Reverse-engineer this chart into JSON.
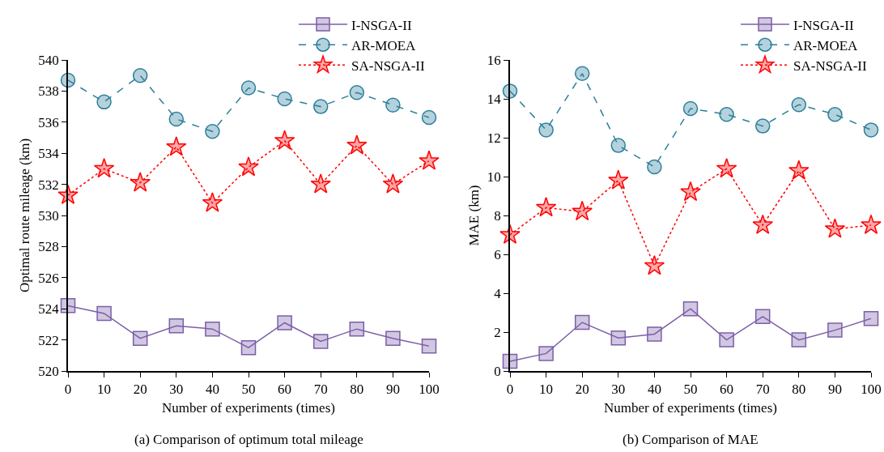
{
  "chart_data": [
    {
      "type": "line",
      "xlabel": "Number of experiments (times)",
      "ylabel": "Optimal route mileage (km)",
      "annotations": [
        "(a) Comparison of optimum total mileage"
      ],
      "x": [
        0,
        10,
        20,
        30,
        40,
        50,
        60,
        70,
        80,
        90,
        100
      ],
      "xlim": [
        0,
        100
      ],
      "xticks": [
        0,
        10,
        20,
        30,
        40,
        50,
        60,
        70,
        80,
        90,
        100
      ],
      "ylim": [
        520,
        540
      ],
      "yticks": [
        520,
        522,
        524,
        526,
        528,
        530,
        532,
        534,
        536,
        538,
        540
      ],
      "grid": false,
      "legend": "top right",
      "series": [
        {
          "name": "I-NSGA-II",
          "color": "#7b5fa8",
          "marker": "square",
          "line_style": "solid",
          "values": [
            524.2,
            523.7,
            522.1,
            522.9,
            522.7,
            521.5,
            523.1,
            521.9,
            522.7,
            522.1,
            521.6
          ]
        },
        {
          "name": "AR-MOEA",
          "color": "#2b7f9a",
          "marker": "circle",
          "line_style": "dashed",
          "values": [
            538.7,
            537.3,
            539.0,
            536.2,
            535.4,
            538.2,
            537.5,
            537.0,
            537.9,
            537.1,
            536.3
          ]
        },
        {
          "name": "SA-NSGA-II",
          "color": "#ff0000",
          "marker": "star",
          "line_style": "dotted",
          "values": [
            531.3,
            533.0,
            532.1,
            534.4,
            530.8,
            533.1,
            534.8,
            532.0,
            534.5,
            532.0,
            533.5
          ]
        }
      ]
    },
    {
      "type": "line",
      "xlabel": "Number of experiments (times)",
      "ylabel": "MAE (km)",
      "annotations": [
        "(b) Comparison of MAE"
      ],
      "x": [
        0,
        10,
        20,
        30,
        40,
        50,
        60,
        70,
        80,
        90,
        100
      ],
      "xlim": [
        0,
        100
      ],
      "xticks": [
        0,
        10,
        20,
        30,
        40,
        50,
        60,
        70,
        80,
        90,
        100
      ],
      "ylim": [
        0,
        16
      ],
      "yticks": [
        0,
        2,
        4,
        6,
        8,
        10,
        12,
        14,
        16
      ],
      "grid": false,
      "legend": "top right",
      "series": [
        {
          "name": "I-NSGA-II",
          "color": "#7b5fa8",
          "marker": "square",
          "line_style": "solid",
          "values": [
            0.5,
            0.9,
            2.5,
            1.7,
            1.9,
            3.2,
            1.6,
            2.8,
            1.6,
            2.1,
            2.7
          ]
        },
        {
          "name": "AR-MOEA",
          "color": "#2b7f9a",
          "marker": "circle",
          "line_style": "dashed",
          "values": [
            14.4,
            12.4,
            15.3,
            11.6,
            10.5,
            13.5,
            13.2,
            12.6,
            13.7,
            13.2,
            12.4
          ]
        },
        {
          "name": "SA-NSGA-II",
          "color": "#ff0000",
          "marker": "star",
          "line_style": "dotted",
          "values": [
            7.0,
            8.4,
            8.2,
            9.8,
            5.4,
            9.2,
            10.4,
            7.5,
            10.3,
            7.3,
            7.5
          ]
        }
      ]
    }
  ]
}
